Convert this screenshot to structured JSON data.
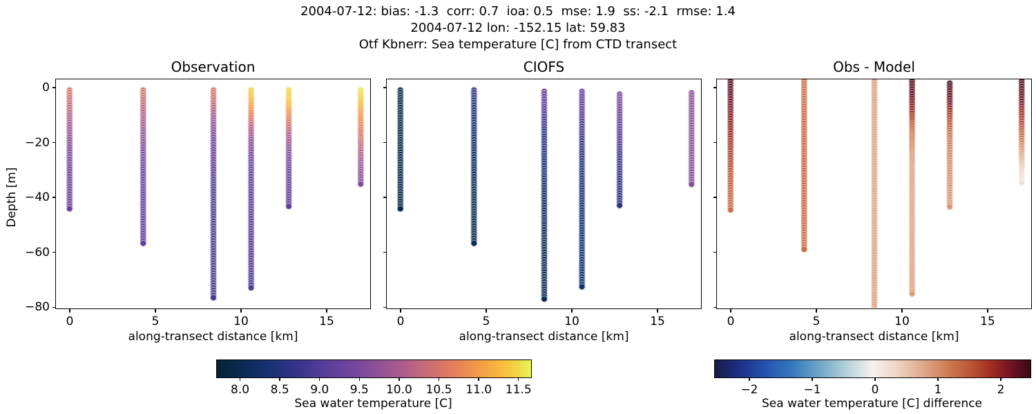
{
  "titles": {
    "line1": "2004-07-12: bias: -1.3  corr: 0.7  ioa: 0.5  mse: 1.9  ss: -2.1  rmse: 1.4",
    "line2": "2004-07-12 lon: -152.15 lat: 59.83",
    "line3": "Otf Kbnerr: Sea temperature [C] from CTD transect"
  },
  "axes": {
    "xlabel": "along-transect distance [km]",
    "ylabel": "Depth [m]",
    "x_ticks": [
      {
        "v": 0,
        "label": "0"
      },
      {
        "v": 5,
        "label": "5"
      },
      {
        "v": 10,
        "label": "10"
      },
      {
        "v": 15,
        "label": "15"
      }
    ],
    "y_ticks": [
      {
        "v": 0,
        "label": "0"
      },
      {
        "v": -20,
        "label": "−20"
      },
      {
        "v": -40,
        "label": "−40"
      },
      {
        "v": -60,
        "label": "−60"
      },
      {
        "v": -80,
        "label": "−80"
      }
    ],
    "xlim": [
      -0.85,
      17.6
    ],
    "ylim": [
      -80.5,
      3.3
    ],
    "grid": false
  },
  "colormaps": {
    "thermal": [
      [
        0,
        "#042333"
      ],
      [
        0.08,
        "#0a2a53"
      ],
      [
        0.16,
        "#173270"
      ],
      [
        0.25,
        "#333388"
      ],
      [
        0.34,
        "#583d99"
      ],
      [
        0.43,
        "#71459c"
      ],
      [
        0.5,
        "#8b4f98"
      ],
      [
        0.58,
        "#a85b8d"
      ],
      [
        0.66,
        "#c66a78"
      ],
      [
        0.74,
        "#e07a5e"
      ],
      [
        0.82,
        "#f29649"
      ],
      [
        0.9,
        "#f8b93c"
      ],
      [
        0.96,
        "#f0d848"
      ],
      [
        1,
        "#e7f65a"
      ]
    ],
    "balance": [
      [
        0,
        "#181c43"
      ],
      [
        0.08,
        "#1e3088"
      ],
      [
        0.16,
        "#2453b0"
      ],
      [
        0.24,
        "#3476bd"
      ],
      [
        0.33,
        "#6fa5c7"
      ],
      [
        0.42,
        "#b6d3da"
      ],
      [
        0.5,
        "#f7f1ee"
      ],
      [
        0.58,
        "#eed3c3"
      ],
      [
        0.66,
        "#dfa98c"
      ],
      [
        0.74,
        "#cc7a52"
      ],
      [
        0.81,
        "#bb5534"
      ],
      [
        0.88,
        "#9e2a20"
      ],
      [
        0.94,
        "#6f1226"
      ],
      [
        1,
        "#3a0a14"
      ]
    ]
  },
  "colorbars": [
    {
      "label": "Sea water temperature [C]",
      "cmap": "thermal",
      "vmin": 7.7,
      "vmax": 11.65,
      "ticks": [
        {
          "v": 8.0,
          "label": "8.0"
        },
        {
          "v": 8.5,
          "label": "8.5"
        },
        {
          "v": 9.0,
          "label": "9.0"
        },
        {
          "v": 9.5,
          "label": "9.5"
        },
        {
          "v": 10.0,
          "label": "10.0"
        },
        {
          "v": 10.5,
          "label": "10.5"
        },
        {
          "v": 11.0,
          "label": "11.0"
        },
        {
          "v": 11.5,
          "label": "11.5"
        }
      ]
    },
    {
      "label": "Sea water temperature [C] difference",
      "cmap": "balance",
      "vmin": -2.56,
      "vmax": 2.46,
      "ticks": [
        {
          "v": -2,
          "label": "−2"
        },
        {
          "v": -1,
          "label": "−1"
        },
        {
          "v": 0,
          "label": "0"
        },
        {
          "v": 1,
          "label": "1"
        },
        {
          "v": 2,
          "label": "2"
        }
      ]
    }
  ],
  "chart_data": [
    {
      "type": "scatter",
      "title": "Observation",
      "xlabel": "along-transect distance [km]",
      "ylabel": "Depth [m]",
      "cmap": "thermal",
      "vmin": 7.7,
      "vmax": 11.65,
      "value_name": "Sea water temperature [C]",
      "profiles": [
        {
          "x_km": 0.0,
          "points": [
            [
              -1,
              10.5
            ],
            [
              -8,
              10.25
            ],
            [
              -14,
              9.95
            ],
            [
              -20,
              9.65
            ],
            [
              -26,
              9.45
            ],
            [
              -34,
              9.3
            ],
            [
              -45,
              9.25
            ]
          ]
        },
        {
          "x_km": 4.3,
          "points": [
            [
              -1,
              10.5
            ],
            [
              -8,
              10.2
            ],
            [
              -15,
              9.85
            ],
            [
              -22,
              9.55
            ],
            [
              -30,
              9.3
            ],
            [
              -42,
              9.15
            ],
            [
              -57.5,
              9.1
            ]
          ]
        },
        {
          "x_km": 8.4,
          "points": [
            [
              -1,
              10.55
            ],
            [
              -6,
              10.3
            ],
            [
              -11,
              9.9
            ],
            [
              -17,
              9.5
            ],
            [
              -24,
              9.2
            ],
            [
              -34,
              9.0
            ],
            [
              -50,
              8.9
            ],
            [
              -77.5,
              8.85
            ]
          ]
        },
        {
          "x_km": 10.6,
          "points": [
            [
              -1,
              11.45
            ],
            [
              -5,
              11.2
            ],
            [
              -8,
              10.9
            ],
            [
              -12,
              10.5
            ],
            [
              -16,
              10.0
            ],
            [
              -21,
              9.6
            ],
            [
              -28,
              9.3
            ],
            [
              -40,
              9.1
            ],
            [
              -58,
              9.0
            ],
            [
              -73,
              8.95
            ]
          ]
        },
        {
          "x_km": 12.8,
          "points": [
            [
              -1,
              11.5
            ],
            [
              -6,
              11.3
            ],
            [
              -9,
              10.95
            ],
            [
              -13,
              10.55
            ],
            [
              -17,
              10.1
            ],
            [
              -22,
              9.7
            ],
            [
              -28,
              9.4
            ],
            [
              -36,
              9.2
            ],
            [
              -43.5,
              9.1
            ]
          ]
        },
        {
          "x_km": 17.0,
          "points": [
            [
              -1,
              11.55
            ],
            [
              -5,
              11.35
            ],
            [
              -9,
              11.0
            ],
            [
              -14,
              10.75
            ],
            [
              -19,
              10.45
            ],
            [
              -24,
              10.1
            ],
            [
              -29,
              9.8
            ],
            [
              -35.5,
              9.55
            ]
          ]
        }
      ]
    },
    {
      "type": "scatter",
      "title": "CIOFS",
      "xlabel": "along-transect distance [km]",
      "ylabel": "Depth [m]",
      "cmap": "thermal",
      "vmin": 7.7,
      "vmax": 11.65,
      "value_name": "Sea water temperature [C]",
      "profiles": [
        {
          "x_km": 0.0,
          "points": [
            [
              -1,
              8.0
            ],
            [
              -45,
              7.9
            ]
          ]
        },
        {
          "x_km": 4.3,
          "points": [
            [
              -1,
              8.65
            ],
            [
              -8,
              8.45
            ],
            [
              -16,
              8.25
            ],
            [
              -28,
              8.1
            ],
            [
              -45,
              8.0
            ],
            [
              -57.5,
              7.95
            ]
          ]
        },
        {
          "x_km": 8.4,
          "points": [
            [
              -1.5,
              9.3
            ],
            [
              -6,
              9.1
            ],
            [
              -12,
              8.85
            ],
            [
              -18,
              8.6
            ],
            [
              -26,
              8.4
            ],
            [
              -38,
              8.2
            ],
            [
              -55,
              8.05
            ],
            [
              -77.5,
              8.0
            ]
          ]
        },
        {
          "x_km": 10.6,
          "points": [
            [
              -1.5,
              9.3
            ],
            [
              -8,
              9.1
            ],
            [
              -16,
              8.85
            ],
            [
              -24,
              8.6
            ],
            [
              -34,
              8.4
            ],
            [
              -48,
              8.3
            ],
            [
              -73,
              8.25
            ]
          ]
        },
        {
          "x_km": 12.8,
          "points": [
            [
              -2.5,
              9.6
            ],
            [
              -10,
              9.3
            ],
            [
              -18,
              9.0
            ],
            [
              -27,
              8.75
            ],
            [
              -36,
              8.6
            ],
            [
              -43.5,
              8.55
            ]
          ]
        },
        {
          "x_km": 17.0,
          "points": [
            [
              -2,
              9.7
            ],
            [
              -18,
              9.65
            ],
            [
              -35.5,
              9.6
            ]
          ]
        }
      ]
    },
    {
      "type": "scatter",
      "title": "Obs - Model",
      "xlabel": "along-transect distance [km]",
      "ylabel": "Depth [m]",
      "cmap": "balance",
      "vmin": -2.56,
      "vmax": 2.46,
      "value_name": "Sea water temperature [C] difference",
      "profiles": [
        {
          "x_km": 0.0,
          "points": [
            [
              4,
              2.35
            ],
            [
              -6,
              2.15
            ],
            [
              -14,
              1.95
            ],
            [
              -22,
              1.75
            ],
            [
              -30,
              1.55
            ],
            [
              -40,
              1.35
            ],
            [
              -45,
              1.25
            ]
          ]
        },
        {
          "x_km": 4.3,
          "points": [
            [
              4,
              1.2
            ],
            [
              -10,
              1.3
            ],
            [
              -30,
              1.35
            ],
            [
              -48,
              1.3
            ],
            [
              -59,
              1.25
            ]
          ]
        },
        {
          "x_km": 8.4,
          "points": [
            [
              3,
              0.85
            ],
            [
              -40,
              0.8
            ],
            [
              -81,
              0.85
            ]
          ]
        },
        {
          "x_km": 10.6,
          "points": [
            [
              4,
              2.4
            ],
            [
              -4,
              2.2
            ],
            [
              -9,
              1.9
            ],
            [
              -13,
              1.5
            ],
            [
              -17,
              1.2
            ],
            [
              -22,
              1.0
            ],
            [
              -28,
              0.85
            ],
            [
              -45,
              0.8
            ],
            [
              -76,
              0.85
            ]
          ]
        },
        {
          "x_km": 12.8,
          "points": [
            [
              1.5,
              2.4
            ],
            [
              -4,
              2.25
            ],
            [
              -8,
              1.95
            ],
            [
              -12,
              1.6
            ],
            [
              -16,
              1.3
            ],
            [
              -21,
              1.1
            ],
            [
              -28,
              1.0
            ],
            [
              -36,
              0.95
            ],
            [
              -44,
              0.9
            ]
          ]
        },
        {
          "x_km": 17.0,
          "points": [
            [
              4,
              2.42
            ],
            [
              -3,
              2.25
            ],
            [
              -7,
              2.0
            ],
            [
              -11,
              1.75
            ],
            [
              -15,
              1.5
            ],
            [
              -19,
              1.2
            ],
            [
              -23,
              0.9
            ],
            [
              -27,
              0.6
            ],
            [
              -31,
              0.3
            ],
            [
              -35.5,
              0.12
            ]
          ]
        }
      ]
    }
  ]
}
